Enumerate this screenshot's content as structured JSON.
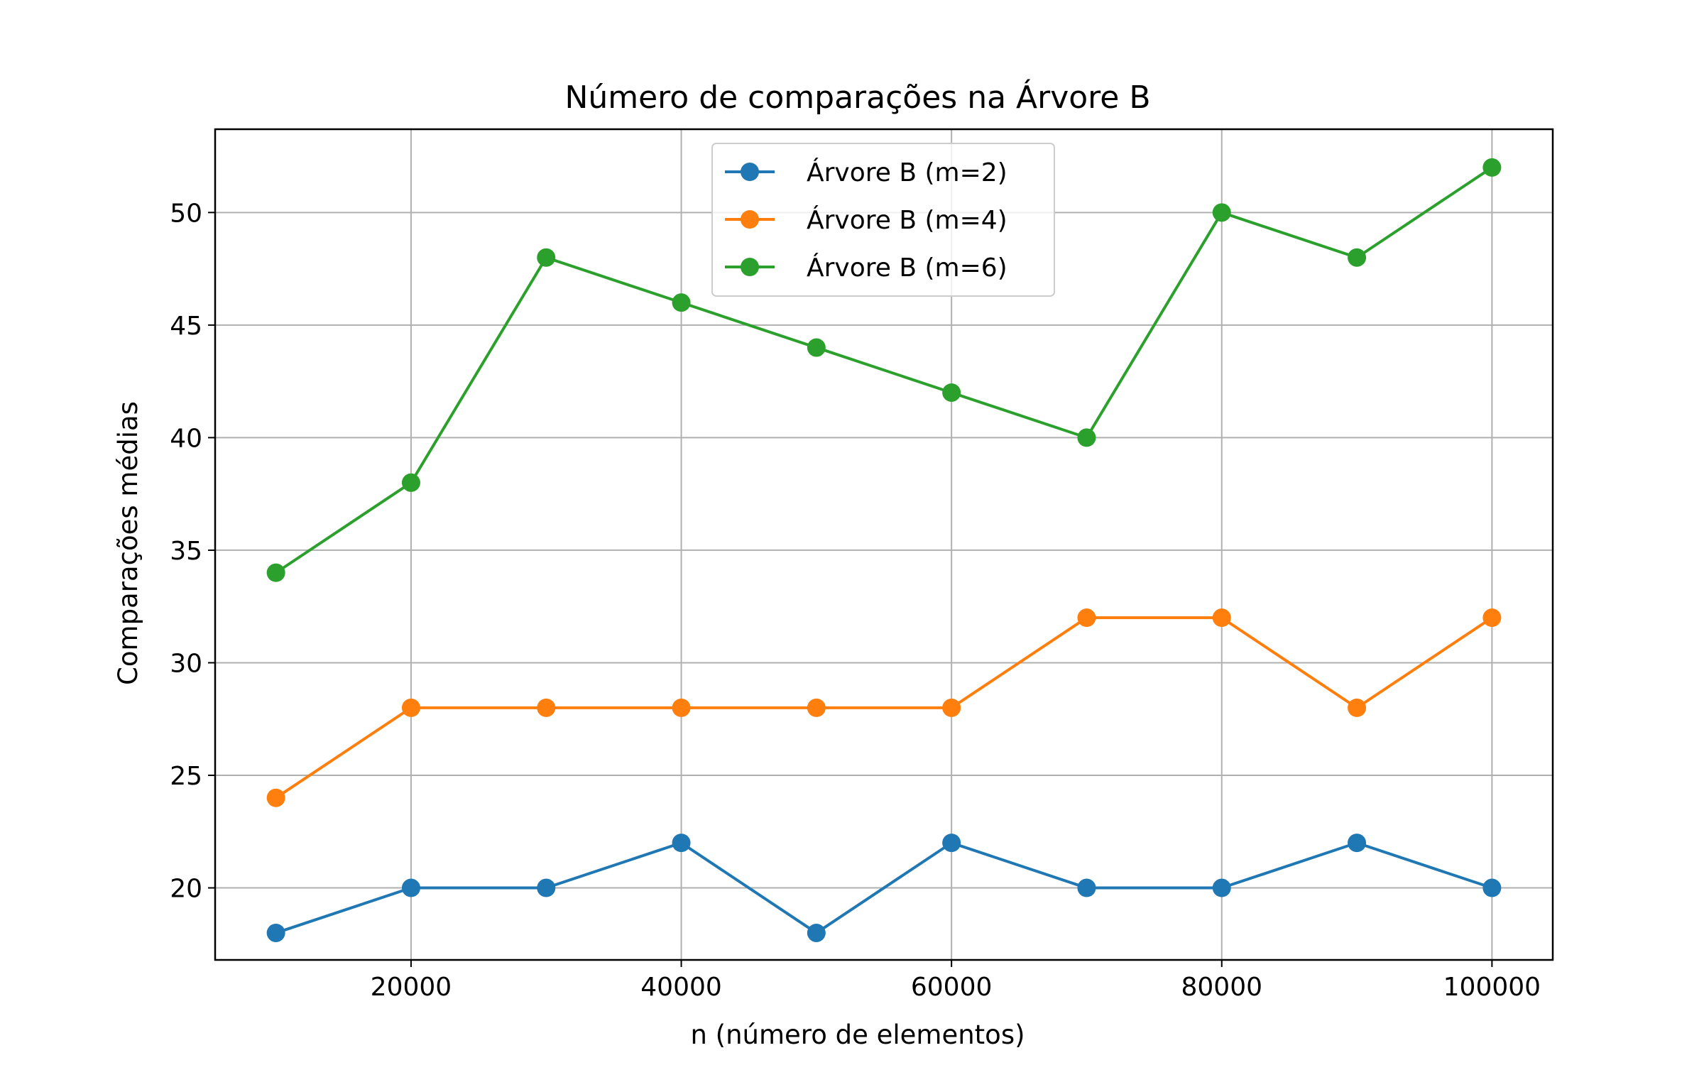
{
  "chart_data": {
    "type": "line",
    "title": "Número de comparações na Árvore B",
    "xlabel": "n (número de elementos)",
    "ylabel": "Comparações médias",
    "x": [
      10000,
      20000,
      30000,
      40000,
      50000,
      60000,
      70000,
      80000,
      90000,
      100000
    ],
    "xlim": [
      5500,
      104500
    ],
    "ylim": [
      16.8,
      53.7
    ],
    "xticks": [
      20000,
      40000,
      60000,
      80000,
      100000
    ],
    "yticks": [
      20,
      25,
      30,
      35,
      40,
      45,
      50
    ],
    "grid": true,
    "legend_position": "top-center",
    "series": [
      {
        "name": "Árvore B (m=2)",
        "color": "#1f77b4",
        "values": [
          18,
          20,
          20,
          22,
          18,
          22,
          20,
          20,
          22,
          20
        ]
      },
      {
        "name": "Árvore B (m=4)",
        "color": "#ff7f0e",
        "values": [
          24,
          28,
          28,
          28,
          28,
          28,
          32,
          32,
          28,
          32
        ]
      },
      {
        "name": "Árvore B (m=6)",
        "color": "#2ca02c",
        "values": [
          34,
          38,
          48,
          46,
          44,
          42,
          40,
          50,
          48,
          52
        ]
      }
    ]
  }
}
